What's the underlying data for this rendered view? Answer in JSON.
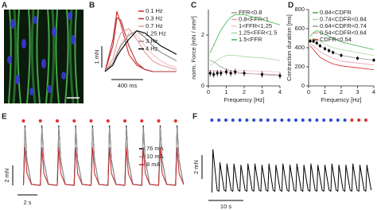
{
  "image_panel": {
    "label": "A"
  },
  "chart_data": [
    {
      "panel": "B",
      "type": "line",
      "x": [
        0,
        100,
        150,
        200,
        300,
        400,
        500,
        600,
        700,
        800,
        900
      ],
      "series": [
        {
          "name": "0.1 Hz",
          "color": "#d62728",
          "values": [
            0,
            1.5,
            2.8,
            2.2,
            0.8,
            0.3,
            0.1,
            0,
            0,
            0,
            0
          ]
        },
        {
          "name": "0.3 Hz",
          "color": "#b03030",
          "values": [
            0,
            1.2,
            2.5,
            2.4,
            1.2,
            0.4,
            0.1,
            0,
            0,
            0,
            0
          ]
        },
        {
          "name": "0.7 Hz",
          "color": "#e89a9a",
          "values": [
            0,
            0.6,
            1.3,
            1.8,
            2.0,
            1.5,
            0.9,
            0.5,
            0.3,
            0.2,
            0.1
          ]
        },
        {
          "name": "1.25 Hz",
          "color": "#f2c4c4",
          "values": [
            0,
            0.4,
            0.9,
            1.3,
            1.8,
            1.7,
            1.2,
            0.8,
            0.5,
            0.3,
            0.2
          ]
        },
        {
          "name": "3 Hz",
          "color": "#8a8a8a",
          "values": [
            0,
            0.4,
            0.8,
            1.2,
            1.7,
            1.9,
            1.6,
            1.2,
            0.9,
            0.7,
            0.5
          ]
        },
        {
          "name": "4 Hz",
          "color": "#000000",
          "values": [
            0,
            0.3,
            0.7,
            1.0,
            1.5,
            1.9,
            1.8,
            1.5,
            1.2,
            1.0,
            0.8
          ]
        }
      ],
      "scalebars": [
        {
          "value": 1,
          "label": "1 mN",
          "axis": "y"
        },
        {
          "value": 400,
          "label": "400 ms",
          "axis": "x"
        }
      ]
    },
    {
      "panel": "C",
      "type": "line",
      "xlabel": "Frequency [Hz]",
      "ylabel": "norm. Force [mN / mm²]",
      "x": [
        0.1,
        0.3,
        0.5,
        0.7,
        1,
        1.25,
        1.5,
        2,
        3,
        4
      ],
      "xlim": [
        0,
        4
      ],
      "xticks": [
        0,
        1,
        2,
        3,
        4
      ],
      "ylim": [
        0,
        3
      ],
      "yticks": [
        0,
        2
      ],
      "series": [
        {
          "name": "FFR<0.8",
          "color": "#9a9a9a",
          "values": [
            1.0,
            0.95,
            0.85,
            0.75,
            0.65,
            0.6,
            0.55,
            0.5,
            0.45,
            0.4
          ]
        },
        {
          "name": "0.8<FFR<1",
          "color": "#e7a0a8",
          "values": [
            0.6,
            0.6,
            0.58,
            0.55,
            0.52,
            0.5,
            0.5,
            0.48,
            0.47,
            0.45
          ]
        },
        {
          "name": "1<FFR<1.25",
          "color": "#f3c8cc",
          "values": [
            0.5,
            0.52,
            0.55,
            0.57,
            0.6,
            0.6,
            0.6,
            0.6,
            0.58,
            0.55
          ]
        },
        {
          "name": "1.25<FFR<1.5",
          "color": "#a8d8a0",
          "values": [
            0.8,
            0.9,
            1.0,
            1.1,
            1.2,
            1.2,
            1.2,
            1.15,
            1.1,
            1.0
          ]
        },
        {
          "name": "1.5<FFR",
          "color": "#3cb44b",
          "values": [
            1.3,
            1.6,
            1.9,
            2.2,
            2.5,
            2.7,
            2.8,
            2.8,
            2.6,
            2.4
          ]
        },
        {
          "color": "#000000",
          "values": [
            0.5,
            0.45,
            0.5,
            0.5,
            0.55,
            0.5,
            0.55,
            0.5,
            0.45,
            0.4
          ],
          "errors": [
            0.12,
            0.12,
            0.12,
            0.12,
            0.12,
            0.12,
            0.12,
            0.12,
            0.12,
            0.12
          ]
        }
      ]
    },
    {
      "panel": "D",
      "type": "line",
      "xlabel": "Frequency [Hz]",
      "ylabel": "Contraction duration [ms]",
      "x": [
        0.1,
        0.3,
        0.5,
        0.7,
        1,
        1.25,
        1.5,
        2,
        3,
        4
      ],
      "xlim": [
        0,
        4
      ],
      "xticks": [
        0,
        1,
        2,
        3,
        4
      ],
      "ylim": [
        0,
        800
      ],
      "yticks": [
        0,
        200,
        400,
        600,
        800
      ],
      "series": [
        {
          "name": "0.84<CDFR",
          "color": "#3cb44b",
          "values": [
            520,
            560,
            580,
            560,
            540,
            520,
            500,
            460,
            420,
            380
          ]
        },
        {
          "name": "0.74<CDFR<0.84",
          "color": "#a8d8a0",
          "values": [
            480,
            500,
            490,
            470,
            440,
            420,
            400,
            380,
            350,
            320
          ]
        },
        {
          "name": "0.64<CDFR<0.74",
          "color": "#9a9a9a",
          "values": [
            460,
            460,
            440,
            420,
            390,
            370,
            350,
            320,
            290,
            270
          ]
        },
        {
          "name": "0.54<CDFR<0.64",
          "color": "#e7a0a8",
          "values": [
            440,
            420,
            390,
            360,
            330,
            310,
            290,
            260,
            240,
            220
          ]
        },
        {
          "name": "CDFR<0.54",
          "color": "#d62728",
          "values": [
            420,
            380,
            340,
            300,
            270,
            250,
            230,
            210,
            190,
            170
          ]
        },
        {
          "color": "#000000",
          "values": [
            470,
            470,
            450,
            420,
            390,
            370,
            350,
            320,
            290,
            270
          ],
          "errors": [
            20,
            20,
            20,
            20,
            20,
            20,
            20,
            20,
            20,
            20
          ]
        }
      ]
    },
    {
      "panel": "E",
      "type": "line",
      "x": [
        0.6,
        0.75,
        0.95,
        1.4,
        2.3,
        2.45,
        2.65,
        3.1,
        4.0,
        4.15,
        4.35,
        4.8,
        5.7,
        5.85,
        6.05,
        6.5,
        7.4,
        7.55,
        7.75,
        8.2,
        9.1,
        9.25,
        9.45,
        9.9,
        10.8,
        10.95,
        11.15,
        11.6,
        12.5,
        12.65,
        12.85,
        13.3,
        14.2,
        14.35,
        14.55,
        15.0,
        15.9,
        16.05,
        16.25,
        16.7
      ],
      "series": [
        {
          "name": "76 mA",
          "color": "#000000",
          "values": [
            0,
            6,
            2.5,
            0.1,
            0,
            6,
            2.5,
            0.1,
            0,
            6,
            2.5,
            0.1,
            0,
            6,
            2.5,
            0.1,
            0,
            6,
            2.5,
            0.1,
            0,
            6,
            2.5,
            0.1,
            0,
            6,
            2.5,
            0.1,
            0,
            6,
            2.5,
            0.1,
            0,
            6,
            2.5,
            0.1,
            0,
            6,
            2.5,
            0.1
          ]
        },
        {
          "name": "10 mA",
          "color": "#9a9a9a",
          "values": [
            0,
            5.8,
            2.4,
            0.1,
            0,
            5.8,
            2.4,
            0.1,
            0,
            5.8,
            2.4,
            0.1,
            0,
            5.8,
            2.4,
            0.1,
            0,
            5.8,
            2.4,
            0.1,
            0,
            5.8,
            2.4,
            0.1,
            0,
            5.8,
            2.4,
            0.1,
            0,
            5.8,
            2.4,
            0.1,
            0,
            5.8,
            2.4,
            0.1,
            0,
            5.8,
            2.4,
            0.1
          ]
        },
        {
          "name": "8 mA",
          "color": "#c0282d",
          "values": [
            0,
            3.8,
            1.2,
            0.1,
            0,
            3.8,
            1.2,
            0.1,
            0,
            3.8,
            1.2,
            0.1,
            0,
            3.8,
            1.2,
            0.1,
            0,
            3.8,
            1.2,
            0.1,
            0,
            3.8,
            1.2,
            0.1,
            0,
            3.8,
            1.2,
            0.1,
            0,
            3.8,
            1.2,
            0.1,
            0,
            3.8,
            1.2,
            0.1,
            0,
            3.8,
            1.2,
            0.1
          ]
        }
      ],
      "stimuli": [
        {
          "color": "#e03030",
          "x": [
            0.6,
            2.3,
            4.0,
            5.7,
            7.4,
            9.1,
            10.8,
            12.5,
            14.2,
            15.9
          ]
        }
      ],
      "scalebars": [
        {
          "value": 2,
          "label": "2 mN",
          "axis": "y"
        },
        {
          "value": 2,
          "label": "2 s",
          "axis": "x"
        }
      ]
    },
    {
      "panel": "F",
      "type": "line",
      "x": [
        1,
        1.3,
        2.5,
        3,
        3.3,
        4.5,
        5,
        5.3,
        6.5,
        7,
        7.3,
        8.5,
        9,
        9.3,
        10.5,
        11,
        11.3,
        12.5,
        13,
        13.3,
        14.5,
        15,
        15.3,
        16.5,
        17,
        17.3,
        18.5,
        19,
        19.3,
        20.5,
        21,
        21.3,
        22.5,
        23,
        23.3,
        24.5,
        25,
        25.3,
        26.5,
        27,
        27.3,
        28.5,
        29,
        29.3,
        30.5,
        31,
        31.3,
        32.5,
        33,
        33.3,
        34.5,
        35,
        35.3,
        36.5,
        37,
        37.3,
        38.5,
        39,
        39.3,
        40.5,
        41,
        41.3,
        42.5,
        43,
        43.3,
        44.5,
        45,
        45.3,
        46.5
      ],
      "series": [
        {
          "color": "#000000",
          "values": [
            0.2,
            3.8,
            0.4,
            0.3,
            2.7,
            0.4,
            0.3,
            2.6,
            0.4,
            0.3,
            2.6,
            0.4,
            0.3,
            2.5,
            0.4,
            0.3,
            2.6,
            0.4,
            0.3,
            2.6,
            0.4,
            0.3,
            2.5,
            0.4,
            0.3,
            2.6,
            0.4,
            0.3,
            2.5,
            0.4,
            0.3,
            2.6,
            0.4,
            0.3,
            2.5,
            0.4,
            0.3,
            2.6,
            0.4,
            0.3,
            2.5,
            0.4,
            0.3,
            2.6,
            0.4,
            0.3,
            2.5,
            0.4,
            0.3,
            2.5,
            0.4,
            0.3,
            2.6,
            0.4,
            0.3,
            2.5,
            0.4,
            0.3,
            2.5,
            0.4,
            0.3,
            2.6,
            0.4,
            0.3,
            2.5,
            0.4,
            0.3,
            2.5,
            0.4
          ]
        }
      ],
      "stimuli": [
        {
          "color": "#2a4bd0",
          "x": [
            1,
            3,
            5,
            7,
            9,
            11,
            13,
            15,
            17,
            19,
            21,
            23,
            25,
            27,
            29,
            31,
            33,
            35,
            37,
            39
          ]
        },
        {
          "color": "#e03030",
          "x": [
            41,
            43,
            45
          ]
        }
      ],
      "scalebars": [
        {
          "value": 2,
          "label": "2 mN",
          "axis": "y"
        },
        {
          "value": 10,
          "label": "10 s",
          "axis": "x"
        }
      ]
    }
  ]
}
